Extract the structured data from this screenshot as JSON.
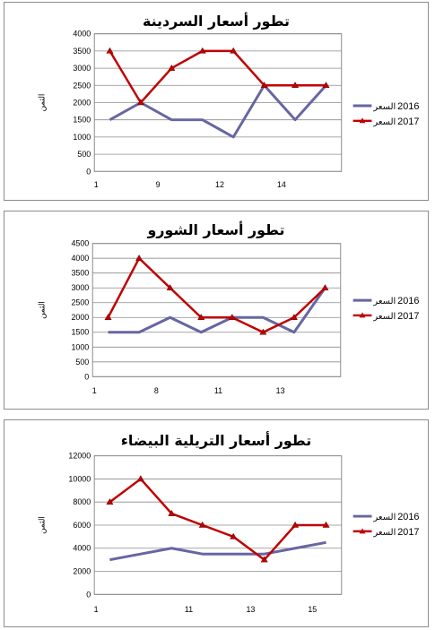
{
  "chart_data": [
    {
      "type": "line",
      "title": "تطور أسعار السردينة",
      "ylabel": "الثمن",
      "x_ticks": [
        "1",
        "9",
        "12",
        "14"
      ],
      "x_count": 8,
      "ylim": [
        0,
        4000
      ],
      "yticks": [
        0,
        500,
        1000,
        1500,
        2000,
        2500,
        3000,
        3500,
        4000
      ],
      "grid": true,
      "legend_position": "right",
      "series": [
        {
          "name": "السعر",
          "year": "2016",
          "color": "#6666a3",
          "values": [
            1500,
            2000,
            1500,
            1500,
            1000,
            2500,
            1500,
            2500
          ]
        },
        {
          "name": "السعر",
          "year": "2017",
          "color": "#c00000",
          "values": [
            3500,
            2000,
            3000,
            3500,
            3500,
            2500,
            2500,
            2500
          ]
        }
      ]
    },
    {
      "type": "line",
      "title": "تطور أسعار الشورو",
      "ylabel": "الثمن",
      "x_ticks": [
        "1",
        "8",
        "11",
        "13"
      ],
      "x_count": 8,
      "ylim": [
        0,
        4500
      ],
      "yticks": [
        0,
        500,
        1000,
        1500,
        2000,
        2500,
        3000,
        3500,
        4000,
        4500
      ],
      "grid": true,
      "legend_position": "right",
      "series": [
        {
          "name": "السعر",
          "year": "2016",
          "color": "#6666a3",
          "values": [
            1500,
            1500,
            2000,
            1500,
            2000,
            2000,
            1500,
            3000
          ]
        },
        {
          "name": "السعر",
          "year": "2017",
          "color": "#c00000",
          "values": [
            2000,
            4000,
            3000,
            2000,
            2000,
            1500,
            2000,
            3000
          ]
        }
      ]
    },
    {
      "type": "line",
      "title": "تطور أسعار التريلية البيضاء",
      "ylabel": "الثمن",
      "x_ticks": [
        "1",
        "11",
        "13",
        "15"
      ],
      "x_count": 8,
      "ylim": [
        0,
        12000
      ],
      "yticks": [
        0,
        2000,
        4000,
        6000,
        8000,
        10000,
        12000
      ],
      "grid": true,
      "legend_position": "right",
      "series": [
        {
          "name": "السعر",
          "year": "2016",
          "color": "#6666a3",
          "values": [
            3000,
            3500,
            4000,
            3500,
            3500,
            3500,
            4000,
            4500
          ]
        },
        {
          "name": "السعر",
          "year": "2017",
          "color": "#c00000",
          "values": [
            8000,
            10000,
            7000,
            6000,
            5000,
            3000,
            6000,
            6000
          ]
        }
      ]
    }
  ]
}
